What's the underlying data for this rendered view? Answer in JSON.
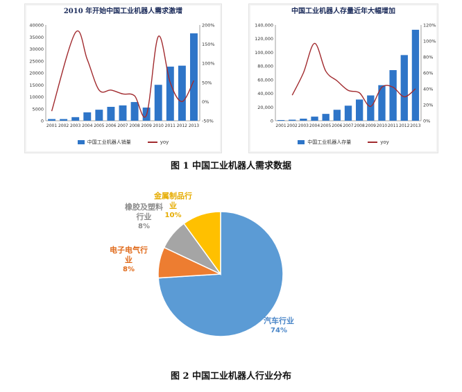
{
  "chart_data": [
    {
      "type": "bar",
      "title": "2010 年开始中国工业机器人需求激增",
      "categories": [
        "2001",
        "2002",
        "2003",
        "2004",
        "2005",
        "2006",
        "2007",
        "2008",
        "2009",
        "2010",
        "2011",
        "2012",
        "2013"
      ],
      "series": [
        {
          "name": "中国工业机器人销量",
          "type": "bar",
          "axis": "left",
          "values": [
            700,
            700,
            1500,
            3500,
            4600,
            5800,
            6400,
            7800,
            5500,
            15000,
            22600,
            23000,
            36500
          ]
        },
        {
          "name": "yoy",
          "type": "line",
          "axis": "right",
          "values": [
            -25,
            null,
            180,
            110,
            30,
            30,
            20,
            15,
            -35,
            170,
            50,
            0,
            55
          ]
        }
      ],
      "ylim_left": [
        0,
        40000
      ],
      "yticks_left": [
        "0",
        "5000",
        "10000",
        "15000",
        "20000",
        "25000",
        "30000",
        "35000",
        "40000"
      ],
      "ylim_right": [
        -50,
        200
      ],
      "yticks_right": [
        "-50%",
        "0%",
        "50%",
        "100%",
        "150%",
        "200%"
      ],
      "legend": "bottom"
    },
    {
      "type": "bar",
      "title": "中国工业机器人存量近年大幅增加",
      "categories": [
        "2001",
        "2002",
        "2003",
        "2004",
        "2005",
        "2006",
        "2007",
        "2008",
        "2009",
        "2010",
        "2011",
        "2012",
        "2013"
      ],
      "series": [
        {
          "name": "中国工业机器人存量",
          "type": "bar",
          "axis": "left",
          "values": [
            1000,
            1500,
            3000,
            6000,
            10000,
            16000,
            22000,
            31000,
            37000,
            52000,
            74000,
            96000,
            133000
          ]
        },
        {
          "name": "yoy",
          "type": "line",
          "axis": "right",
          "values": [
            null,
            32,
            60,
            97,
            62,
            50,
            38,
            35,
            18,
            42,
            42,
            30,
            40
          ]
        }
      ],
      "ylim_left": [
        0,
        140000
      ],
      "yticks_left": [
        "0",
        "20,000",
        "40,000",
        "60,000",
        "80,000",
        "100,000",
        "120,000",
        "140,000"
      ],
      "ylim_right": [
        0,
        120
      ],
      "yticks_right": [
        "0%",
        "20%",
        "40%",
        "60%",
        "80%",
        "100%",
        "120%"
      ],
      "legend": "bottom"
    },
    {
      "type": "pie",
      "slices": [
        {
          "label": "汽车行业",
          "value": 74,
          "pct": "74%",
          "color": "#5b9bd5"
        },
        {
          "label": "电子电气行业",
          "value": 8,
          "pct": "8%",
          "color": "#ed7d31"
        },
        {
          "label": "橡胶及塑料行业",
          "value": 8,
          "pct": "8%",
          "color": "#a5a5a5"
        },
        {
          "label": "金属制品行业",
          "value": 10,
          "pct": "10%",
          "color": "#ffc000"
        }
      ]
    }
  ],
  "captions": {
    "fig1": "图 1 中国工业机器人需求数据",
    "fig2": "图 2 中国工业机器人行业分布"
  },
  "pie_labels": {
    "auto": {
      "line1": "汽车行业",
      "pct": "74%"
    },
    "elec": {
      "line1": "电子电气行",
      "line2": "业",
      "pct": "8%"
    },
    "rubber": {
      "line1": "橡胶及塑料",
      "line2": "行业",
      "pct": "8%"
    },
    "metal": {
      "line1": "金属制品行",
      "line2": "业",
      "pct": "10%"
    }
  },
  "colors": {
    "bar": "#2e75c8",
    "line": "#a12a2e"
  }
}
